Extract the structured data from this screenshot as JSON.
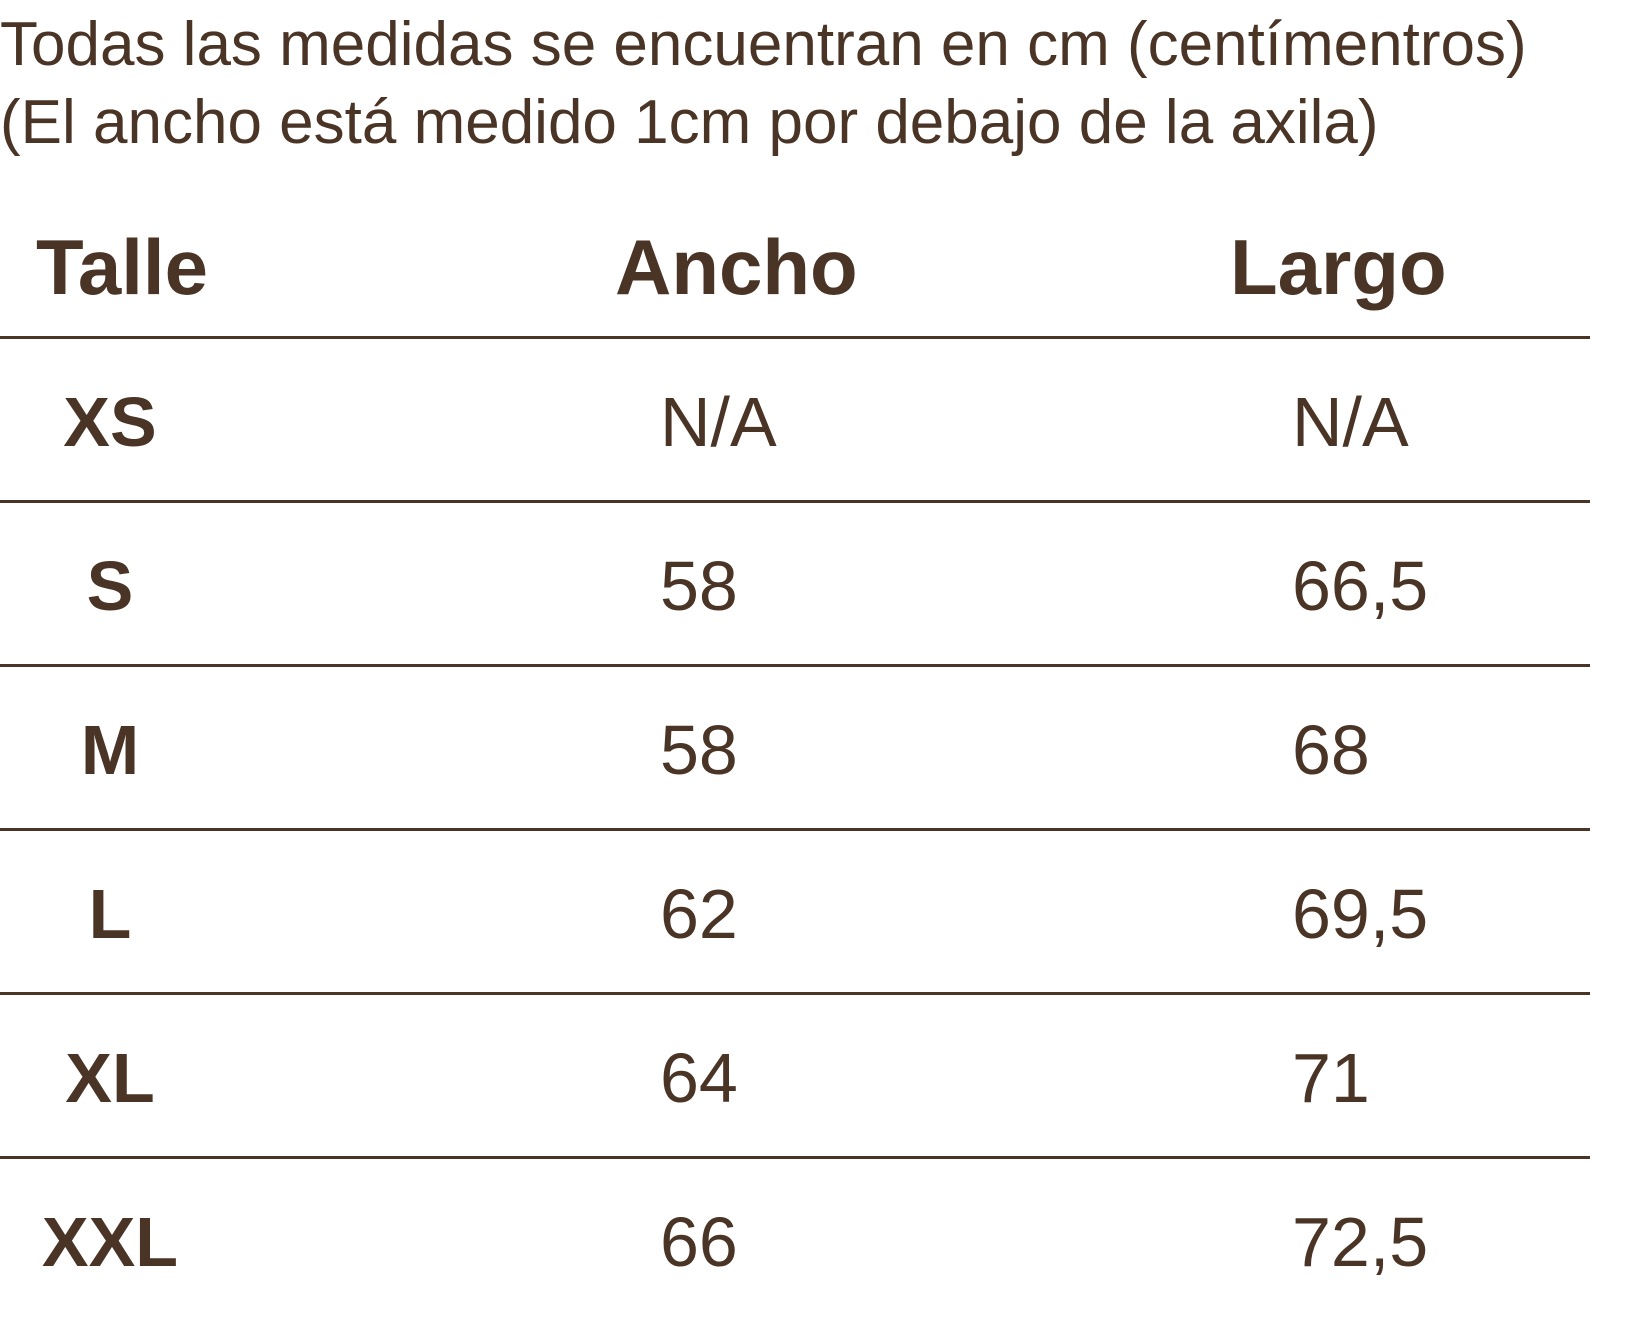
{
  "notes": {
    "line1": "Todas las medidas se encuentran en cm (centímentros)",
    "line2": "(El ancho está medido 1cm por debajo de la axila)"
  },
  "table": {
    "headers": {
      "talle": "Talle",
      "ancho": "Ancho",
      "largo": "Largo"
    },
    "rows": [
      {
        "talle": "XS",
        "ancho": "N/A",
        "largo": "N/A"
      },
      {
        "talle": "S",
        "ancho": "58",
        "largo": "66,5"
      },
      {
        "talle": "M",
        "ancho": "58",
        "largo": "68"
      },
      {
        "talle": "L",
        "ancho": "62",
        "largo": "69,5"
      },
      {
        "talle": "XL",
        "ancho": "64",
        "largo": "71"
      },
      {
        "talle": "XXL",
        "ancho": "66",
        "largo": "72,5"
      }
    ]
  },
  "colors": {
    "text": "#4a3426",
    "rule": "#4a3426",
    "background": "#ffffff"
  }
}
